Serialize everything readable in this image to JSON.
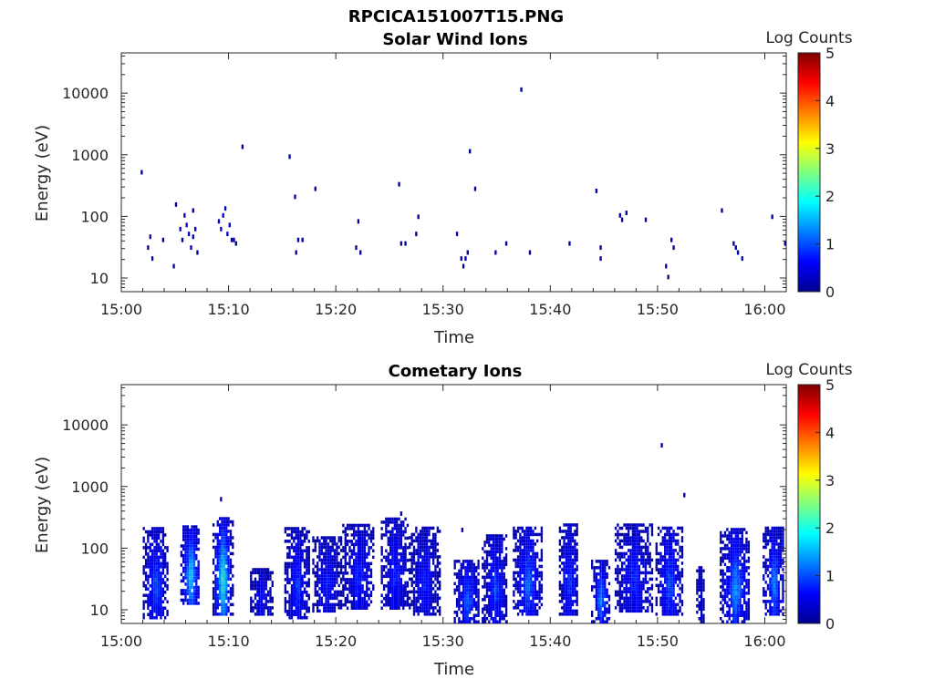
{
  "figure_title": "RPCICA151007T15.PNG",
  "colormap": [
    "#00008f",
    "#0000ff",
    "#00a0ff",
    "#3fffbf",
    "#ffff00",
    "#ff6000",
    "#ff0000",
    "#800000"
  ],
  "chart_data": [
    {
      "type": "heatmap",
      "title": "Solar Wind Ions",
      "xlabel": "Time",
      "ylabel": "Energy (eV)",
      "xlim": [
        "15:00",
        "16:02"
      ],
      "ylim": [
        6,
        45000
      ],
      "yscale": "log",
      "x_ticks": [
        "15:00",
        "15:10",
        "15:20",
        "15:30",
        "15:40",
        "15:50",
        "16:00"
      ],
      "y_ticks": [
        "10",
        "100",
        "1000",
        "10000"
      ],
      "colorbar": {
        "label": "Log Counts",
        "range": [
          0,
          5
        ],
        "ticks": [
          "0",
          "1",
          "2",
          "3",
          "4",
          "5"
        ]
      },
      "grid": false,
      "points": [
        [
          1.8,
          500,
          0.1
        ],
        [
          2.4,
          30,
          0.1
        ],
        [
          2.6,
          45,
          0.1
        ],
        [
          2.8,
          20,
          0.1
        ],
        [
          3.8,
          40,
          0.1
        ],
        [
          4.8,
          15,
          0.1
        ],
        [
          5.0,
          150,
          0.1
        ],
        [
          5.4,
          60,
          0.3
        ],
        [
          5.6,
          40,
          0.2
        ],
        [
          5.8,
          100,
          0.3
        ],
        [
          6.0,
          70,
          0.4
        ],
        [
          6.2,
          50,
          0.3
        ],
        [
          6.4,
          30,
          0.2
        ],
        [
          6.6,
          120,
          0.2
        ],
        [
          6.8,
          60,
          0.3
        ],
        [
          6.6,
          45,
          0.2
        ],
        [
          7.0,
          25,
          0.1
        ],
        [
          9.0,
          80,
          0.4
        ],
        [
          9.2,
          60,
          0.5
        ],
        [
          9.4,
          100,
          0.4
        ],
        [
          9.6,
          130,
          0.3
        ],
        [
          9.8,
          50,
          0.4
        ],
        [
          10.0,
          70,
          0.3
        ],
        [
          10.2,
          40,
          0.2
        ],
        [
          10.4,
          40,
          0.1
        ],
        [
          10.6,
          35,
          0.1
        ],
        [
          11.2,
          1300,
          0.1
        ],
        [
          15.6,
          900,
          0.1
        ],
        [
          16.1,
          200,
          0.1
        ],
        [
          16.4,
          40,
          0.1
        ],
        [
          16.2,
          25,
          0.1
        ],
        [
          16.8,
          40,
          0.1
        ],
        [
          18.0,
          270,
          0.1
        ],
        [
          22.0,
          80,
          0.1
        ],
        [
          21.8,
          30,
          0.1
        ],
        [
          22.2,
          25,
          0.1
        ],
        [
          25.8,
          320,
          0.1
        ],
        [
          26.0,
          35,
          0.1
        ],
        [
          26.4,
          35,
          0.1
        ],
        [
          27.6,
          95,
          0.1
        ],
        [
          27.4,
          50,
          0.1
        ],
        [
          31.2,
          50,
          0.1
        ],
        [
          31.6,
          20,
          0.2
        ],
        [
          31.8,
          15,
          0.2
        ],
        [
          32.0,
          20,
          0.2
        ],
        [
          32.2,
          25,
          0.1
        ],
        [
          32.4,
          1100,
          0.1
        ],
        [
          32.9,
          270,
          0.1
        ],
        [
          34.8,
          25,
          0.1
        ],
        [
          35.8,
          35,
          0.1
        ],
        [
          37.2,
          11000,
          0.1
        ],
        [
          38.0,
          25,
          0.1
        ],
        [
          41.7,
          35,
          0.1
        ],
        [
          44.2,
          250,
          0.1
        ],
        [
          44.6,
          30,
          0.1
        ],
        [
          44.6,
          20,
          0.1
        ],
        [
          46.4,
          100,
          0.1
        ],
        [
          46.6,
          85,
          0.1
        ],
        [
          47.0,
          110,
          0.1
        ],
        [
          48.8,
          85,
          0.1
        ],
        [
          50.7,
          15,
          0.1
        ],
        [
          50.9,
          10,
          0.1
        ],
        [
          51.2,
          40,
          0.1
        ],
        [
          51.4,
          30,
          0.1
        ],
        [
          55.9,
          120,
          0.1
        ],
        [
          57.0,
          35,
          0.2
        ],
        [
          57.2,
          30,
          0.1
        ],
        [
          57.4,
          25,
          0.1
        ],
        [
          57.8,
          20,
          0.1
        ],
        [
          60.6,
          95,
          0.1
        ],
        [
          61.8,
          35,
          0.1
        ]
      ]
    },
    {
      "type": "heatmap",
      "title": "Cometary Ions",
      "xlabel": "Time",
      "ylabel": "Energy (eV)",
      "xlim": [
        "15:00",
        "16:02"
      ],
      "ylim": [
        6,
        45000
      ],
      "yscale": "log",
      "x_ticks": [
        "15:00",
        "15:10",
        "15:20",
        "15:30",
        "15:40",
        "15:50",
        "16:00"
      ],
      "y_ticks": [
        "10",
        "100",
        "1000",
        "10000"
      ],
      "colorbar": {
        "label": "Log Counts",
        "range": [
          0,
          5
        ],
        "ticks": [
          "0",
          "1",
          "2",
          "3",
          "4",
          "5"
        ]
      },
      "grid": false,
      "bursts": [
        {
          "t": [
            2.0,
            4.3
          ],
          "e": [
            7,
            200
          ],
          "peak": 1.0
        },
        {
          "t": [
            5.5,
            7.3
          ],
          "e": [
            12,
            230
          ],
          "peak": 1.7
        },
        {
          "t": [
            8.5,
            10.3
          ],
          "e": [
            8,
            300
          ],
          "peak": 1.9
        },
        {
          "t": [
            12.0,
            14.0
          ],
          "e": [
            8,
            45
          ],
          "peak": 0.6
        },
        {
          "t": [
            15.2,
            17.5
          ],
          "e": [
            7,
            200
          ],
          "peak": 0.9
        },
        {
          "t": [
            17.8,
            20.5
          ],
          "e": [
            9,
            150
          ],
          "peak": 0.7
        },
        {
          "t": [
            20.6,
            23.5
          ],
          "e": [
            10,
            230
          ],
          "peak": 0.8
        },
        {
          "t": [
            24.2,
            26.7
          ],
          "e": [
            10,
            300
          ],
          "peak": 0.8
        },
        {
          "t": [
            26.8,
            29.6
          ],
          "e": [
            8,
            220
          ],
          "peak": 0.7
        },
        {
          "t": [
            31.0,
            33.4
          ],
          "e": [
            6,
            60
          ],
          "peak": 1.1
        },
        {
          "t": [
            33.6,
            36.0
          ],
          "e": [
            6,
            160
          ],
          "peak": 0.9
        },
        {
          "t": [
            36.5,
            39.2
          ],
          "e": [
            8,
            220
          ],
          "peak": 1.1
        },
        {
          "t": [
            40.8,
            42.6
          ],
          "e": [
            8,
            230
          ],
          "peak": 0.9
        },
        {
          "t": [
            43.8,
            45.5
          ],
          "e": [
            6,
            60
          ],
          "peak": 1.3
        },
        {
          "t": [
            46.0,
            49.5
          ],
          "e": [
            9,
            250
          ],
          "peak": 0.8
        },
        {
          "t": [
            49.8,
            52.3
          ],
          "e": [
            8,
            200
          ],
          "peak": 1.0
        },
        {
          "t": [
            53.6,
            54.3
          ],
          "e": [
            6,
            50
          ],
          "peak": 0.4
        },
        {
          "t": [
            55.8,
            58.6
          ],
          "e": [
            6,
            200
          ],
          "peak": 1.3
        },
        {
          "t": [
            59.8,
            61.8
          ],
          "e": [
            8,
            200
          ],
          "peak": 1.2
        }
      ],
      "points": [
        [
          9.2,
          600,
          0.1
        ],
        [
          50.3,
          4500,
          0.1
        ],
        [
          52.4,
          700,
          0.1
        ],
        [
          31.7,
          190,
          0.1
        ],
        [
          26.0,
          350,
          0.1
        ]
      ]
    }
  ]
}
